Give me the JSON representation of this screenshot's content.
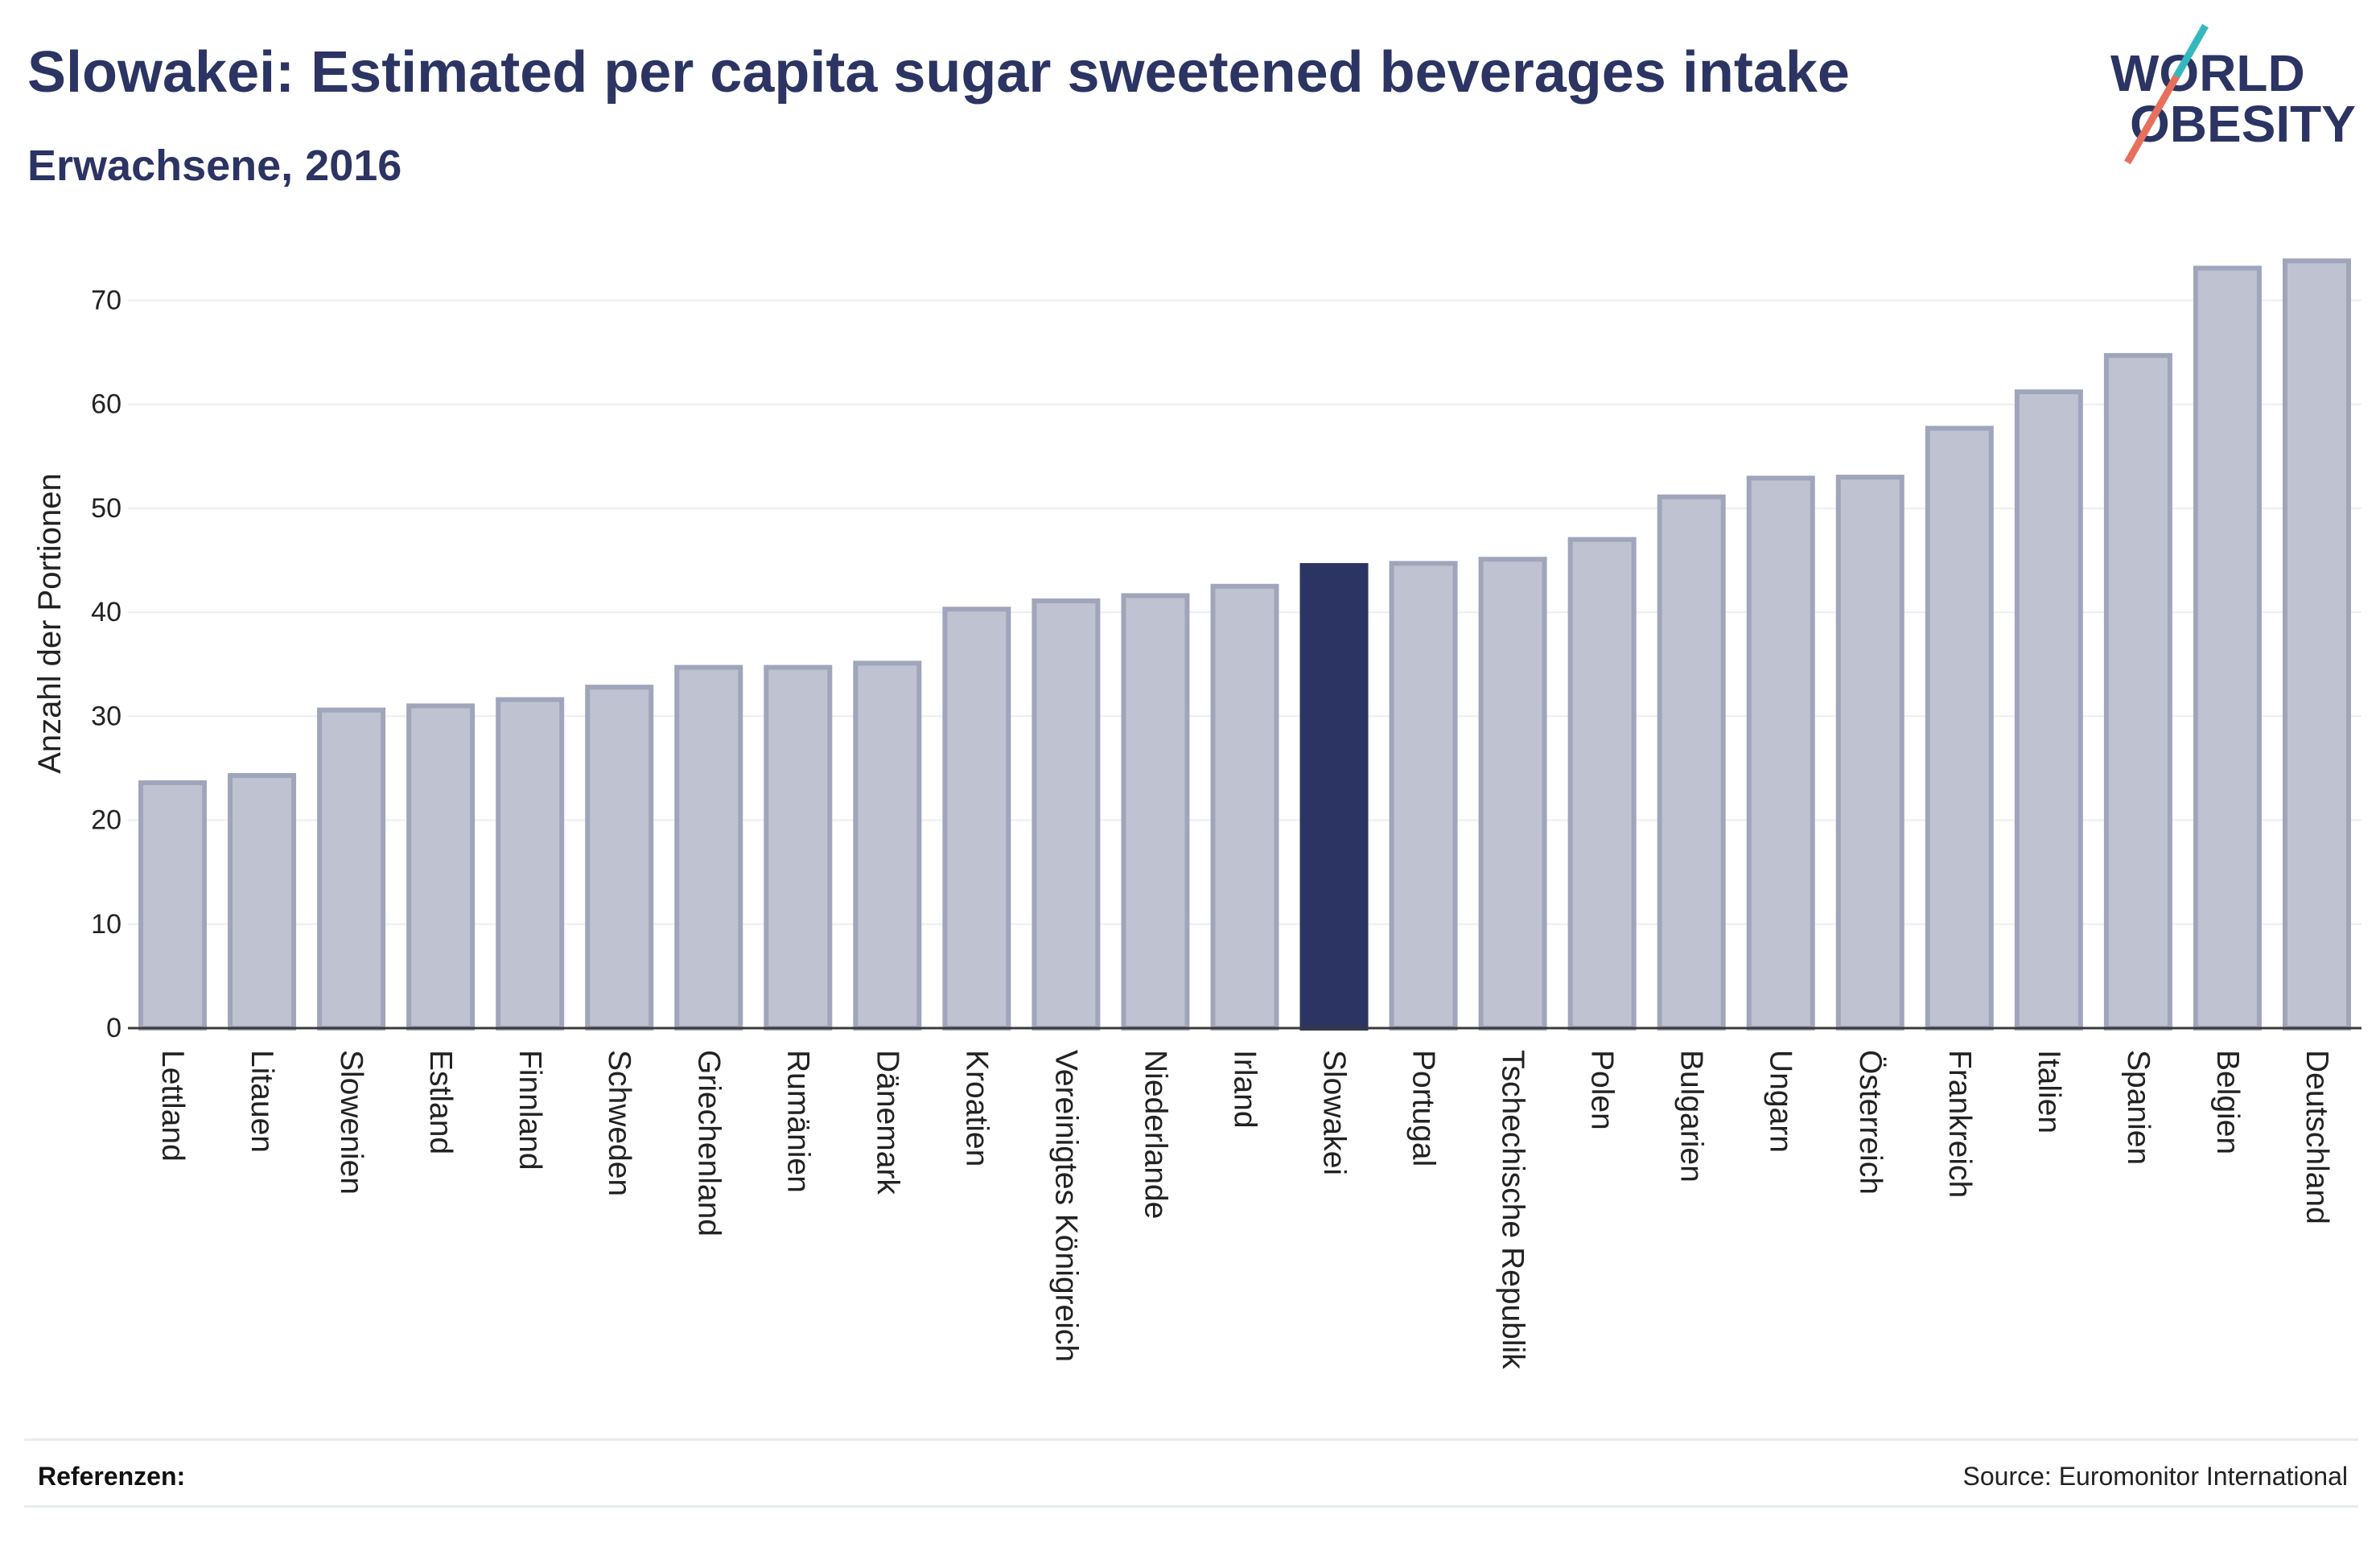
{
  "colors": {
    "primary": "#2b3462",
    "bar_fill": "#bfc2d0",
    "bar_stroke": "#a1a5bb",
    "highlight_fill": "#2b3462",
    "grid": "#eceef1",
    "axis": "#3a3a3a",
    "logo_teal": "#35b8bd",
    "logo_coral": "#e6705c"
  },
  "logo": {
    "line1": "WORLD",
    "line2": "OBESITY",
    "icon": "logo-slash-icon"
  },
  "chart_data": {
    "type": "bar",
    "title": "Slowakei: Estimated per capita sugar sweetened beverages intake",
    "subtitle": "Erwachsene, 2016",
    "ylabel": "Anzahl der Portionen",
    "categories": [
      "Lettland",
      "Litauen",
      "Slowenien",
      "Estland",
      "Finnland",
      "Schweden",
      "Griechenland",
      "Rumänien",
      "Dänemark",
      "Kroatien",
      "Vereinigtes Königreich",
      "Niederlande",
      "Irland",
      "Slowakei",
      "Portugal",
      "Tschechische Republik",
      "Polen",
      "Bulgarien",
      "Ungarn",
      "Österreich",
      "Frankreich",
      "Italien",
      "Spanien",
      "Belgien",
      "Deutschland"
    ],
    "values": [
      23.6,
      24.3,
      30.6,
      31.0,
      31.6,
      32.8,
      34.7,
      34.7,
      35.1,
      40.3,
      41.1,
      41.6,
      42.5,
      44.5,
      44.7,
      45.1,
      47.0,
      51.1,
      52.9,
      53.0,
      57.7,
      61.2,
      64.7,
      73.1,
      73.8
    ],
    "highlight": "Slowakei",
    "yticks": [
      0,
      10,
      20,
      30,
      40,
      50,
      60,
      70
    ],
    "ylim": [
      0,
      78
    ],
    "grid": true,
    "legend": "none"
  },
  "footer": {
    "references_label": "Referenzen:",
    "source": "Source: Euromonitor International"
  }
}
